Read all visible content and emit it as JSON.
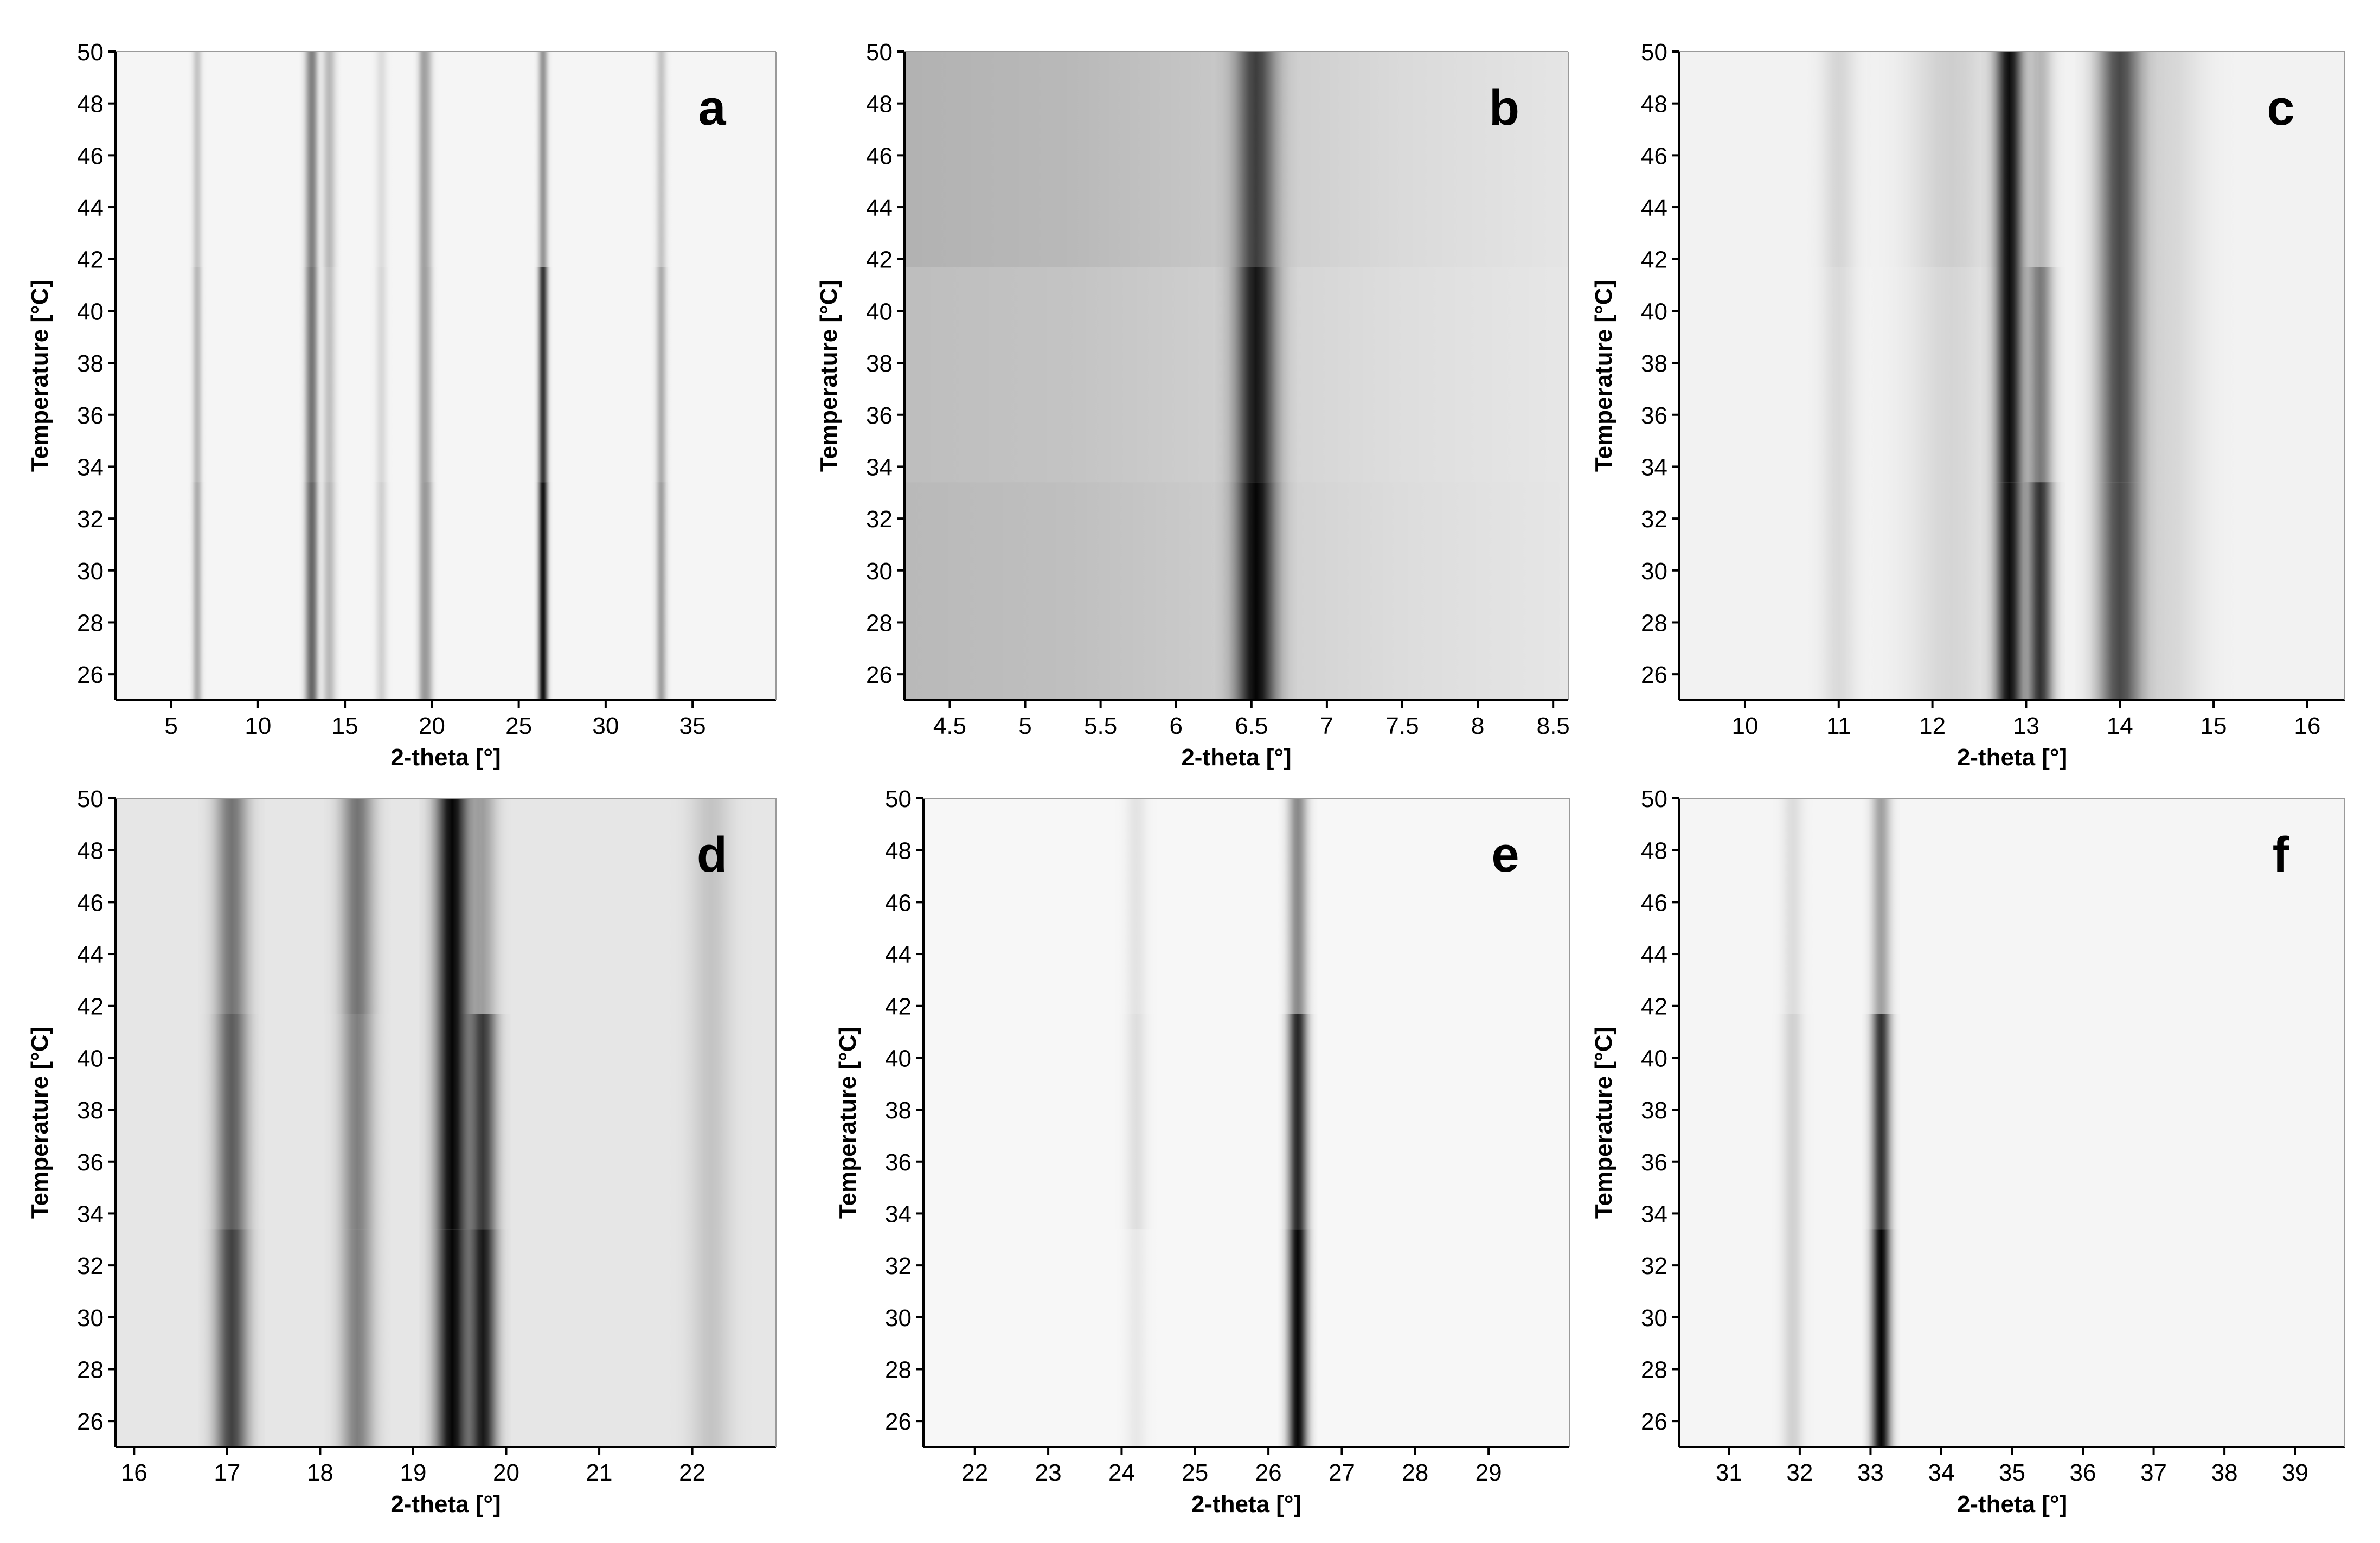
{
  "chart_data": [
    {
      "type": "heatmap",
      "panel_label": "a",
      "xlabel": "2-theta [°]",
      "ylabel": "Temperature [°C]",
      "xlim": [
        1.8,
        39.8
      ],
      "ylim": [
        25,
        50
      ],
      "x_ticks": [
        5,
        10,
        15,
        20,
        25,
        30,
        35
      ],
      "y_ticks": [
        26,
        28,
        30,
        32,
        34,
        36,
        38,
        40,
        42,
        44,
        46,
        48,
        50
      ],
      "background_gray": 0.96,
      "bands": [
        25,
        33.4,
        41.7,
        50
      ],
      "peaks": [
        {
          "x": 6.5,
          "width": 0.18,
          "intensity": [
            0.3,
            0.25,
            0.2
          ]
        },
        {
          "x": 13.0,
          "width": 0.22,
          "intensity": [
            0.45,
            0.4,
            0.35
          ]
        },
        {
          "x": 13.2,
          "width": 0.18,
          "intensity": [
            0.35,
            0.3,
            0.28
          ]
        },
        {
          "x": 14.1,
          "width": 0.25,
          "intensity": [
            0.25,
            0.22,
            0.25
          ]
        },
        {
          "x": 17.1,
          "width": 0.22,
          "intensity": [
            0.15,
            0.12,
            0.1
          ]
        },
        {
          "x": 19.5,
          "width": 0.2,
          "intensity": [
            0.3,
            0.3,
            0.3
          ]
        },
        {
          "x": 19.8,
          "width": 0.2,
          "intensity": [
            0.25,
            0.2,
            0.18
          ]
        },
        {
          "x": 26.4,
          "width": 0.18,
          "intensity": [
            0.95,
            0.8,
            0.4
          ]
        },
        {
          "x": 33.2,
          "width": 0.2,
          "intensity": [
            0.35,
            0.3,
            0.2
          ]
        }
      ]
    },
    {
      "type": "heatmap",
      "panel_label": "b",
      "xlabel": "2-theta [°]",
      "ylabel": "Temperature [°C]",
      "xlim": [
        4.2,
        8.6
      ],
      "ylim": [
        25,
        50
      ],
      "x_ticks": [
        4.5,
        5,
        5.5,
        6,
        6.5,
        7,
        7.5,
        8,
        8.5
      ],
      "y_ticks": [
        26,
        28,
        30,
        32,
        34,
        36,
        38,
        40,
        42,
        44,
        46,
        48,
        50
      ],
      "background_gray": 0.93,
      "bands": [
        25,
        33.4,
        41.7,
        50
      ],
      "peaks": [
        {
          "x": 4.2,
          "width": 2.2,
          "intensity": [
            0.22,
            0.2,
            0.25
          ]
        },
        {
          "x": 6.53,
          "width": 0.09,
          "intensity": [
            0.98,
            0.9,
            0.7
          ]
        }
      ]
    },
    {
      "type": "heatmap",
      "panel_label": "c",
      "xlabel": "2-theta [°]",
      "ylabel": "Temperature [°C]",
      "xlim": [
        9.3,
        16.4
      ],
      "ylim": [
        25,
        50
      ],
      "x_ticks": [
        10,
        11,
        12,
        13,
        14,
        15,
        16
      ],
      "y_ticks": [
        26,
        28,
        30,
        32,
        34,
        36,
        38,
        40,
        42,
        44,
        46,
        48,
        50
      ],
      "background_gray": 0.95,
      "bands": [
        25,
        33.4,
        41.7,
        50
      ],
      "peaks": [
        {
          "x": 11.0,
          "width": 0.12,
          "intensity": [
            0.1,
            0.1,
            0.12
          ]
        },
        {
          "x": 12.2,
          "width": 0.3,
          "intensity": [
            0.12,
            0.12,
            0.15
          ]
        },
        {
          "x": 12.82,
          "width": 0.1,
          "intensity": [
            0.95,
            0.95,
            0.95
          ]
        },
        {
          "x": 13.15,
          "width": 0.09,
          "intensity": [
            0.8,
            0.5,
            0.25
          ]
        },
        {
          "x": 14.0,
          "width": 0.16,
          "intensity": [
            0.7,
            0.7,
            0.7
          ]
        },
        {
          "x": 14.5,
          "width": 0.25,
          "intensity": [
            0.12,
            0.12,
            0.12
          ]
        }
      ]
    },
    {
      "type": "heatmap",
      "panel_label": "d",
      "xlabel": "2-theta [°]",
      "ylabel": "Temperature [°C]",
      "xlim": [
        15.8,
        22.9
      ],
      "ylim": [
        25,
        50
      ],
      "x_ticks": [
        16,
        17,
        18,
        19,
        20,
        21,
        22
      ],
      "y_ticks": [
        26,
        28,
        30,
        32,
        34,
        36,
        38,
        40,
        42,
        44,
        46,
        48,
        50
      ],
      "background_gray": 0.9,
      "bands": [
        25,
        33.4,
        41.7,
        50
      ],
      "peaks": [
        {
          "x": 17.05,
          "width": 0.12,
          "intensity": [
            0.72,
            0.6,
            0.5
          ]
        },
        {
          "x": 18.4,
          "width": 0.12,
          "intensity": [
            0.45,
            0.45,
            0.5
          ]
        },
        {
          "x": 19.42,
          "width": 0.12,
          "intensity": [
            0.98,
            0.98,
            0.98
          ]
        },
        {
          "x": 19.75,
          "width": 0.1,
          "intensity": [
            0.9,
            0.75,
            0.3
          ]
        },
        {
          "x": 22.2,
          "width": 0.15,
          "intensity": [
            0.15,
            0.15,
            0.15
          ]
        }
      ]
    },
    {
      "type": "heatmap",
      "panel_label": "e",
      "xlabel": "2-theta [°]",
      "ylabel": "Temperature [°C]",
      "xlim": [
        21.3,
        30.1
      ],
      "ylim": [
        25,
        50
      ],
      "x_ticks": [
        22,
        23,
        24,
        25,
        26,
        27,
        28,
        29
      ],
      "y_ticks": [
        26,
        28,
        30,
        32,
        34,
        36,
        38,
        40,
        42,
        44,
        46,
        48,
        50
      ],
      "background_gray": 0.97,
      "bands": [
        25,
        33.4,
        41.7,
        50
      ],
      "peaks": [
        {
          "x": 24.2,
          "width": 0.1,
          "intensity": [
            0.06,
            0.1,
            0.08
          ]
        },
        {
          "x": 26.4,
          "width": 0.09,
          "intensity": [
            0.98,
            0.85,
            0.45
          ]
        }
      ]
    },
    {
      "type": "heatmap",
      "panel_label": "f",
      "xlabel": "2-theta [°]",
      "ylabel": "Temperature [°C]",
      "xlim": [
        30.3,
        39.7
      ],
      "ylim": [
        25,
        50
      ],
      "x_ticks": [
        31,
        32,
        33,
        34,
        35,
        36,
        37,
        38,
        39
      ],
      "y_ticks": [
        26,
        28,
        30,
        32,
        34,
        36,
        38,
        40,
        42,
        44,
        46,
        48,
        50
      ],
      "background_gray": 0.96,
      "bands": [
        25,
        33.4,
        41.7,
        50
      ],
      "peaks": [
        {
          "x": 31.9,
          "width": 0.1,
          "intensity": [
            0.15,
            0.15,
            0.1
          ]
        },
        {
          "x": 33.15,
          "width": 0.09,
          "intensity": [
            0.98,
            0.8,
            0.35
          ]
        }
      ]
    }
  ]
}
